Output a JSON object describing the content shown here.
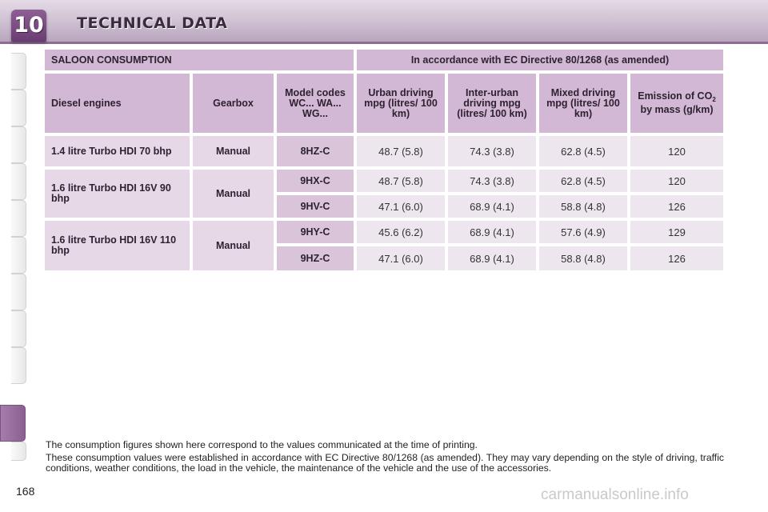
{
  "header": {
    "chapter_number": "10",
    "title": "TECHNICAL DATA"
  },
  "table": {
    "section_title": "SALOON CONSUMPTION",
    "directive": "In accordance with EC Directive 80/1268 (as amended)",
    "headers": {
      "engines": "Diesel engines",
      "gearbox": "Gearbox",
      "model_codes": "Model codes WC... WA... WG...",
      "urban": "Urban driving mpg (litres/ 100 km)",
      "inter_urban": "Inter-urban driving mpg (litres/ 100 km)",
      "mixed": "Mixed driving mpg (litres/ 100 km)",
      "emission_pre": "Emission of CO",
      "emission_sub": "2",
      "emission_post": " by mass (g/km)"
    },
    "groups": [
      {
        "engine": "1.4 litre Turbo HDI 70 bhp",
        "gearbox": "Manual",
        "rows": [
          {
            "code": "8HZ-C",
            "urban": "48.7 (5.8)",
            "inter_urban": "74.3 (3.8)",
            "mixed": "62.8 (4.5)",
            "co2": "120"
          }
        ]
      },
      {
        "engine": "1.6 litre Turbo HDI 16V 90 bhp",
        "gearbox": "Manual",
        "rows": [
          {
            "code": "9HX-C",
            "urban": "48.7 (5.8)",
            "inter_urban": "74.3 (3.8)",
            "mixed": "62.8 (4.5)",
            "co2": "120"
          },
          {
            "code": "9HV-C",
            "urban": "47.1 (6.0)",
            "inter_urban": "68.9 (4.1)",
            "mixed": "58.8 (4.8)",
            "co2": "126"
          }
        ]
      },
      {
        "engine": "1.6 litre Turbo HDI 16V 110 bhp",
        "gearbox": "Manual",
        "rows": [
          {
            "code": "9HY-C",
            "urban": "45.6 (6.2)",
            "inter_urban": "68.9 (4.1)",
            "mixed": "57.6 (4.9)",
            "co2": "129"
          },
          {
            "code": "9HZ-C",
            "urban": "47.1 (6.0)",
            "inter_urban": "68.9 (4.1)",
            "mixed": "58.8 (4.8)",
            "co2": "126"
          }
        ]
      }
    ]
  },
  "notes": [
    "The consumption figures shown here correspond to the values communicated at the time of printing.",
    "These consumption values were established in accordance with EC Directive 80/1268 (as amended). They may vary depending on the style of driving, traffic conditions, weather conditions, the load in the vehicle, the maintenance of the vehicle and the use of the accessories."
  ],
  "page_number": "168",
  "watermark": "carmanualsonline.info",
  "colors": {
    "header_accent": "#8f6d94",
    "table_header": "#d2b8d4",
    "table_row": "#e7d8e8",
    "table_value": "#ede6ee"
  }
}
